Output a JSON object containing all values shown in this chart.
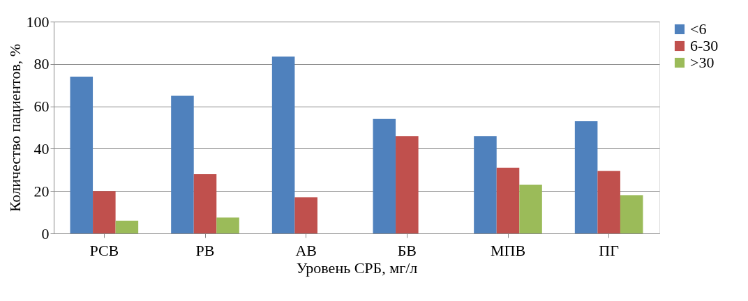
{
  "chart_data": {
    "type": "bar",
    "xlabel": "Уровень СРБ, мг/л",
    "ylabel": "Количество пациентов, %",
    "categories": [
      "РСВ",
      "РВ",
      "АВ",
      "БВ",
      "МПВ",
      "ПГ"
    ],
    "series": [
      {
        "name": "<6",
        "color": "#4f81bd",
        "values": [
          74,
          65,
          83.5,
          54,
          46,
          53
        ]
      },
      {
        "name": "6-30",
        "color": "#c0504d",
        "values": [
          20,
          28,
          17,
          46,
          31,
          29.5
        ]
      },
      {
        "name": ">30",
        "color": "#9bbb59",
        "values": [
          6,
          7.5,
          null,
          null,
          23,
          18
        ]
      }
    ],
    "ylim": [
      0,
      100
    ],
    "yticks": [
      0,
      20,
      40,
      60,
      80,
      100
    ],
    "grid": "y",
    "legend": "right"
  }
}
